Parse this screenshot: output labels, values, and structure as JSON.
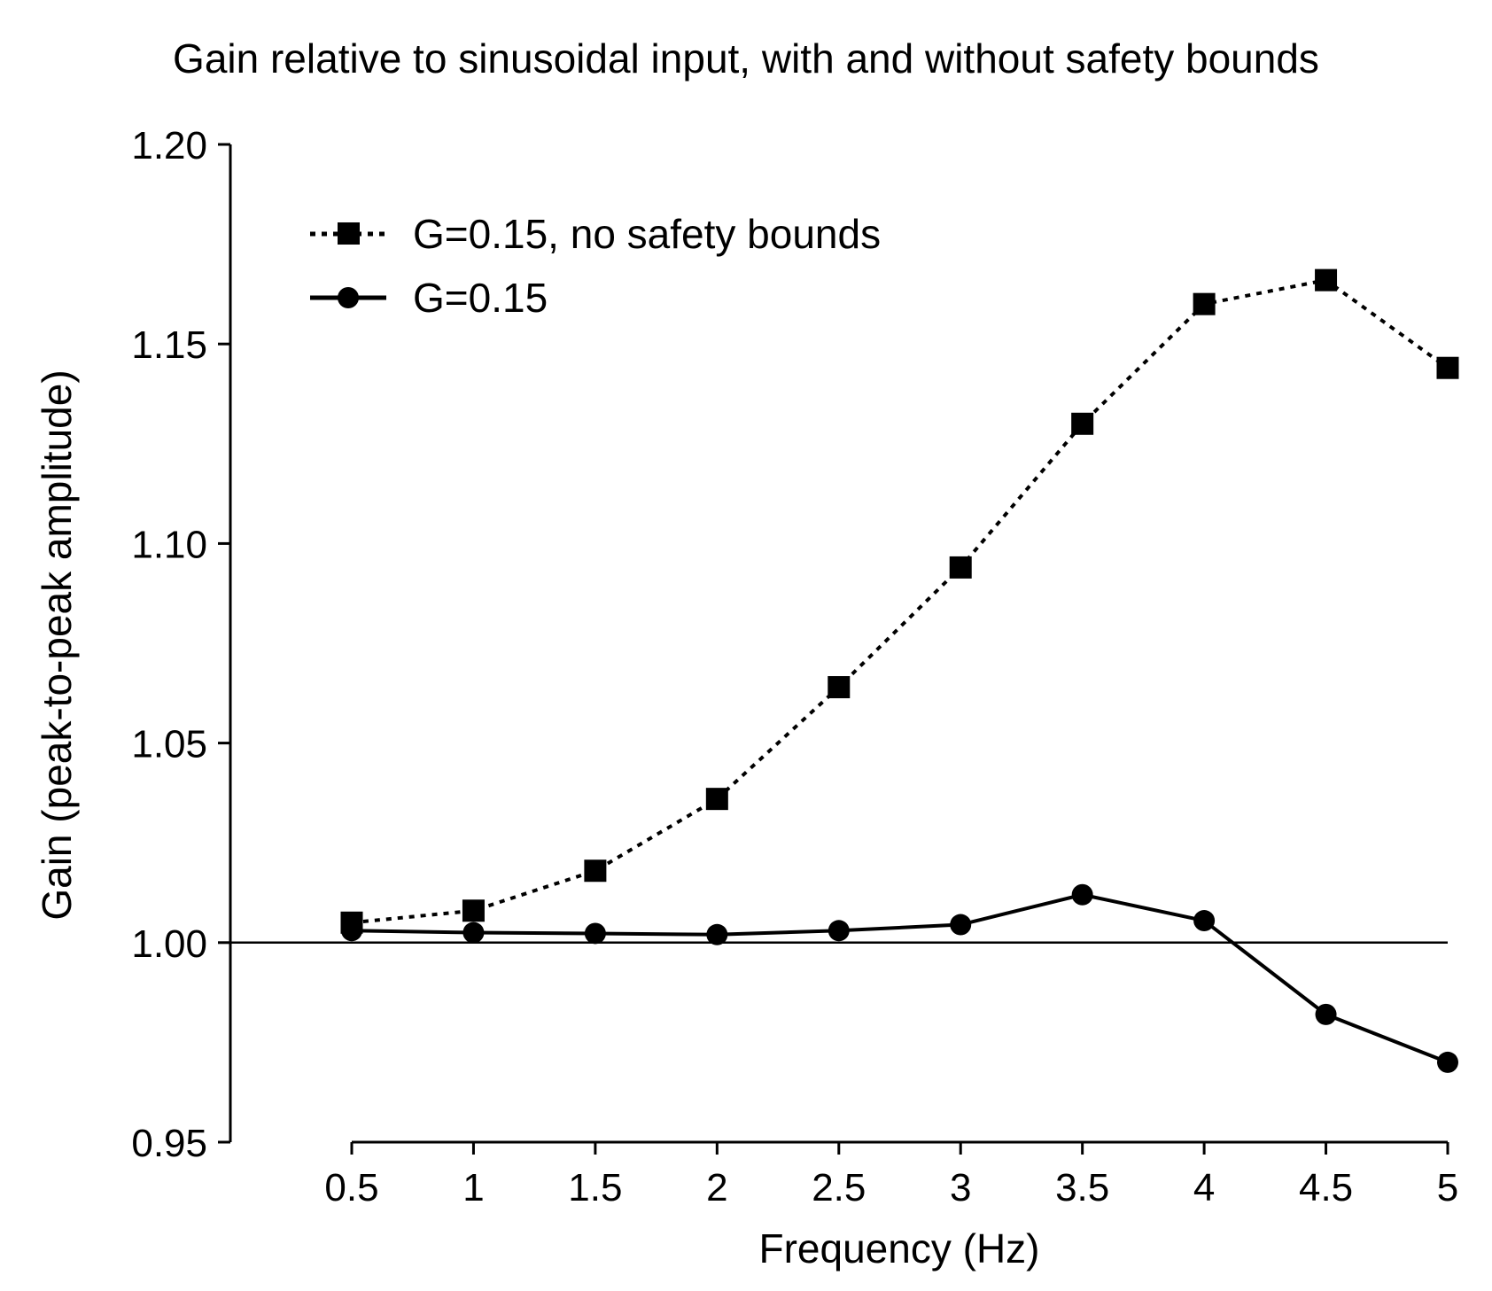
{
  "chart_data": {
    "type": "line",
    "title": "Gain relative to sinusoidal input, with and without safety bounds",
    "xlabel": "Frequency (Hz)",
    "ylabel": "Gain (peak-to-peak amplitude)",
    "x": [
      0.5,
      1,
      1.5,
      2,
      2.5,
      3,
      3.5,
      4,
      4.5,
      5
    ],
    "x_tick_labels": [
      "0.5",
      "1",
      "1.5",
      "2",
      "2.5",
      "3",
      "3.5",
      "4",
      "4.5",
      "5"
    ],
    "y_tick_labels": [
      "0.95",
      "1.00",
      "1.05",
      "1.10",
      "1.15",
      "1.20"
    ],
    "y_ticks": [
      0.95,
      1.0,
      1.05,
      1.1,
      1.15,
      1.2
    ],
    "xlim": [
      0.5,
      5
    ],
    "ylim": [
      0.95,
      1.2
    ],
    "reference_line": 1.0,
    "grid": false,
    "legend_position": "top-left",
    "series": [
      {
        "name": "G=0.15, no safety bounds",
        "marker": "square",
        "line_style": "dotted",
        "color": "#000000",
        "values": [
          1.005,
          1.008,
          1.018,
          1.036,
          1.064,
          1.094,
          1.13,
          1.16,
          1.166,
          1.144
        ]
      },
      {
        "name": "G=0.15",
        "marker": "circle",
        "line_style": "solid",
        "color": "#000000",
        "values": [
          1.003,
          1.0025,
          1.0023,
          1.002,
          1.003,
          1.0045,
          1.012,
          1.0055,
          0.982,
          0.97
        ]
      }
    ]
  }
}
